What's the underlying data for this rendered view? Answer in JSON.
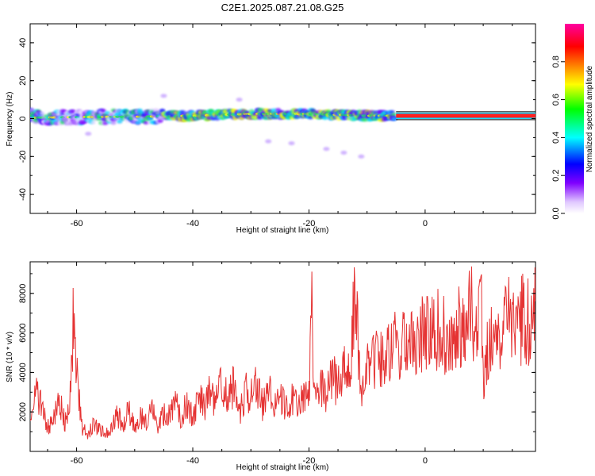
{
  "title": "C2E1.2025.087.21.08.G25",
  "chart_data": [
    {
      "type": "heatmap",
      "panel": "top",
      "xlabel": "Height of straight line (km)",
      "ylabel": "Frequency (Hz)",
      "xlim": [
        -68,
        19
      ],
      "ylim": [
        -50,
        50
      ],
      "x_ticks": [
        "-60",
        "-40",
        "-20",
        "0"
      ],
      "x_tick_values": [
        -60,
        -40,
        -20,
        0
      ],
      "y_ticks": [
        "40",
        "20",
        "0",
        "-20",
        "-40"
      ],
      "y_tick_values": [
        40,
        20,
        0,
        -20,
        -40
      ],
      "colorbar": {
        "label": "Normalized spectral amplitude",
        "range": [
          0,
          1
        ],
        "ticks": [
          "0.0",
          "0.2",
          "0.4",
          "0.6",
          "0.8"
        ],
        "tick_values": [
          0,
          0.2,
          0.4,
          0.6,
          0.8
        ],
        "colormap": [
          "#ffffff",
          "#e0c8ff",
          "#8000ff",
          "#0000ff",
          "#00ffff",
          "#00ff00",
          "#ffff00",
          "#ff8000",
          "#ff0000",
          "#ff00a0"
        ]
      },
      "band": {
        "center_frequency_hz": [
          {
            "x": -67,
            "f": 0.5
          },
          {
            "x": -60,
            "f": 0.8
          },
          {
            "x": -50,
            "f": 1.0
          },
          {
            "x": -40,
            "f": 1.5
          },
          {
            "x": -30,
            "f": 2.5
          },
          {
            "x": -20,
            "f": 2.5
          },
          {
            "x": -10,
            "f": 1.5
          },
          {
            "x": -5,
            "f": 1.5
          },
          {
            "x": 0,
            "f": 1.5
          },
          {
            "x": 10,
            "f": 1.5
          },
          {
            "x": 19,
            "f": 1.5
          }
        ],
        "strong_segment_x": [
          -5,
          19
        ],
        "scattered_weak_points": [
          {
            "x": -27,
            "f": -12
          },
          {
            "x": -23,
            "f": -13
          },
          {
            "x": -17,
            "f": -16
          },
          {
            "x": -14,
            "f": -18
          },
          {
            "x": -11,
            "f": -20
          },
          {
            "x": -45,
            "f": 12
          },
          {
            "x": -32,
            "f": 10
          },
          {
            "x": -58,
            "f": -8
          }
        ]
      }
    },
    {
      "type": "line",
      "panel": "bottom",
      "xlabel": "Height of straight line (km)",
      "ylabel": "SNR (10 * v/v)",
      "xlim": [
        -68,
        19
      ],
      "ylim": [
        0,
        9600
      ],
      "x_ticks": [
        "-60",
        "-40",
        "-20",
        "0"
      ],
      "x_tick_values": [
        -60,
        -40,
        -20,
        0
      ],
      "y_ticks": [
        "8000",
        "6000",
        "4000",
        "2000"
      ],
      "y_tick_values": [
        8000,
        6000,
        4000,
        2000
      ],
      "color": "#e53333",
      "series": [
        {
          "x": [
            -68,
            -67,
            -66,
            -65,
            -64,
            -63,
            -62,
            -61,
            -60.5,
            -60,
            -59.5,
            -59,
            -58,
            -57,
            -56,
            -55,
            -54,
            -53,
            -52,
            -51,
            -50,
            -49,
            -48,
            -47,
            -46,
            -45,
            -44,
            -43,
            -42,
            -41,
            -40,
            -39,
            -38,
            -37,
            -36,
            -35,
            -34,
            -33,
            -32,
            -31,
            -30,
            -29,
            -28,
            -27,
            -26,
            -25,
            -24,
            -23,
            -22,
            -21,
            -20,
            -19.5,
            -19,
            -18,
            -17,
            -16,
            -15,
            -14,
            -13,
            -12,
            -11.5,
            -11,
            -10.5,
            -10,
            -9,
            -8,
            -7,
            -6,
            -5,
            -4,
            -3,
            -2,
            -1,
            0,
            1,
            2,
            3,
            4,
            5,
            6,
            7,
            8,
            8.5,
            9,
            9.5,
            10,
            11,
            12,
            13,
            14,
            15,
            16,
            17,
            18,
            19
          ],
          "values": [
            2000,
            3000,
            2200,
            1200,
            1600,
            2600,
            1400,
            2800,
            7000,
            4000,
            2400,
            1200,
            900,
            1500,
            1100,
            900,
            1300,
            1800,
            1400,
            2100,
            1200,
            1700,
            1500,
            2200,
            1300,
            1800,
            1900,
            2400,
            1700,
            2500,
            1600,
            2800,
            2200,
            3000,
            2500,
            3800,
            2600,
            3400,
            1800,
            3000,
            2900,
            3300,
            2300,
            3400,
            2500,
            2700,
            2200,
            2700,
            2300,
            3000,
            2700,
            7000,
            2500,
            3500,
            2800,
            3800,
            3300,
            4000,
            3800,
            8200,
            5000,
            2800,
            3000,
            4500,
            4800,
            4600,
            4400,
            5000,
            5400,
            5600,
            5200,
            6200,
            5300,
            6400,
            5800,
            6200,
            6000,
            5600,
            6300,
            6200,
            5800,
            8000,
            6200,
            5400,
            9600,
            3300,
            5600,
            6400,
            6100,
            6600,
            6800,
            6400,
            6900,
            6500,
            7600
          ]
        }
      ]
    }
  ]
}
